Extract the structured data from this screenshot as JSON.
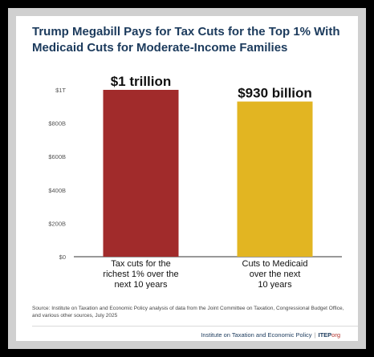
{
  "title": "Trump Megabill Pays for Tax Cuts for the Top 1% With Medicaid Cuts for Moderate-Income Families",
  "chart_data": {
    "type": "bar",
    "categories": [
      [
        "Tax cuts for the",
        "richest 1% over the",
        "next 10 years"
      ],
      [
        "Cuts to Medicaid",
        "over the next",
        "10 years"
      ]
    ],
    "values": [
      1000,
      930
    ],
    "data_labels": [
      "$1 trillion",
      "$930 billion"
    ],
    "colors": [
      "#a12b2b",
      "#e2b522"
    ],
    "ylim": [
      0,
      1000
    ],
    "yticks": [
      0,
      200,
      400,
      600,
      800,
      1000
    ],
    "ytick_labels": [
      "$0",
      "$200B",
      "$400B",
      "$600B",
      "$800B",
      "$1T"
    ],
    "grid": false,
    "xlabel": "",
    "ylabel": ""
  },
  "source": "Source: Institute on Taxation and Economic Policy analysis of data from the Joint Committee on Taxation, Congressional Budget Office, and various other sources, July 2025",
  "footer": {
    "org": "Institute on Taxation and Economic Policy",
    "separator": "|",
    "brand": "ITEP",
    "brand_suffix": "org"
  }
}
